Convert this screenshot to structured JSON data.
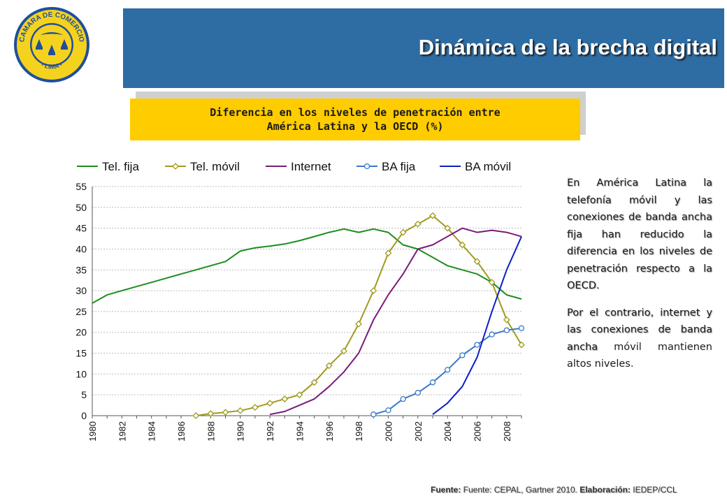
{
  "header": {
    "title": "Dinámica de la brecha digital",
    "logo_text_top": "CAMARA DE COMERCIO",
    "logo_text_bottom": "- LIMA -",
    "colors": {
      "bar": "#2e6da4",
      "logo_ring": "#1f4f9c",
      "logo_fill": "#f5d21e"
    }
  },
  "subtitle": {
    "line1": "Diferencia en los niveles de penetración entre",
    "line2": "América Latina y la OECD (%)"
  },
  "side_text": {
    "p1": "En América Latina la telefonía móvil y las conexiones de banda ancha fija han reducido la diferencia en los niveles de penetración respecto a la OECD.",
    "p2_a": "Por el contrario, internet y las conexiones de banda ancha",
    "p2_b": " móvil mantienen altos niveles."
  },
  "source": {
    "label1": "Fuente:",
    "text1": " Fuente: CEPAL, Gartner 2010. ",
    "label2": "Elaboración:",
    "text2": " IEDEP/CCL"
  },
  "chart_data": {
    "type": "line",
    "ylim": [
      0,
      55
    ],
    "xlim": [
      1980,
      2009
    ],
    "yticks": [
      0,
      5,
      10,
      15,
      20,
      25,
      30,
      35,
      40,
      45,
      50,
      55
    ],
    "xticks": [
      "1980",
      "1982",
      "1984",
      "1986",
      "1988",
      "1990",
      "1992",
      "1994",
      "1996",
      "1998",
      "2000",
      "2002",
      "2004",
      "2006",
      "2008"
    ],
    "grid": true,
    "legend": "top",
    "series": [
      {
        "name": "Tel. fija",
        "color": "#1e8c1e",
        "marker": "none",
        "points": [
          [
            1980,
            27
          ],
          [
            1981,
            29
          ],
          [
            1982,
            30
          ],
          [
            1983,
            31
          ],
          [
            1984,
            32
          ],
          [
            1985,
            33
          ],
          [
            1986,
            34
          ],
          [
            1987,
            35
          ],
          [
            1988,
            36
          ],
          [
            1989,
            37
          ],
          [
            1990,
            39.5
          ],
          [
            1991,
            40.3
          ],
          [
            1992,
            40.7
          ],
          [
            1993,
            41.2
          ],
          [
            1994,
            42
          ],
          [
            1995,
            43
          ],
          [
            1996,
            44
          ],
          [
            1997,
            44.8
          ],
          [
            1998,
            44
          ],
          [
            1999,
            44.8
          ],
          [
            2000,
            44
          ],
          [
            2001,
            41
          ],
          [
            2002,
            40
          ],
          [
            2003,
            38
          ],
          [
            2004,
            36
          ],
          [
            2005,
            35
          ],
          [
            2006,
            34
          ],
          [
            2007,
            32
          ],
          [
            2008,
            29
          ],
          [
            2009,
            28
          ]
        ]
      },
      {
        "name": "Tel. móvil",
        "color": "#a09b1e",
        "marker": "diamond",
        "points": [
          [
            1987,
            0
          ],
          [
            1988,
            0.5
          ],
          [
            1989,
            0.8
          ],
          [
            1990,
            1.2
          ],
          [
            1991,
            2
          ],
          [
            1992,
            3
          ],
          [
            1993,
            4
          ],
          [
            1994,
            5
          ],
          [
            1995,
            8
          ],
          [
            1996,
            12
          ],
          [
            1997,
            15.5
          ],
          [
            1998,
            22
          ],
          [
            1999,
            30
          ],
          [
            2000,
            39
          ],
          [
            2001,
            44
          ],
          [
            2002,
            46
          ],
          [
            2003,
            48
          ],
          [
            2004,
            45
          ],
          [
            2005,
            41
          ],
          [
            2006,
            37
          ],
          [
            2007,
            32
          ],
          [
            2008,
            23
          ],
          [
            2009,
            17
          ]
        ]
      },
      {
        "name": "Internet",
        "color": "#7a1a7a",
        "marker": "none",
        "points": [
          [
            1992,
            0.3
          ],
          [
            1993,
            1
          ],
          [
            1994,
            2.5
          ],
          [
            1995,
            4
          ],
          [
            1996,
            7
          ],
          [
            1997,
            10.5
          ],
          [
            1998,
            15
          ],
          [
            1999,
            23
          ],
          [
            2000,
            29
          ],
          [
            2001,
            34
          ],
          [
            2002,
            40
          ],
          [
            2003,
            41
          ],
          [
            2004,
            43
          ],
          [
            2005,
            45
          ],
          [
            2006,
            44
          ],
          [
            2007,
            44.5
          ],
          [
            2008,
            44
          ],
          [
            2009,
            43
          ]
        ]
      },
      {
        "name": "BA fija",
        "color": "#3a78c9",
        "marker": "circle",
        "points": [
          [
            1999,
            0.3
          ],
          [
            2000,
            1.3
          ],
          [
            2001,
            4
          ],
          [
            2002,
            5.5
          ],
          [
            2003,
            8
          ],
          [
            2004,
            11
          ],
          [
            2005,
            14.5
          ],
          [
            2006,
            17
          ],
          [
            2007,
            19.5
          ],
          [
            2008,
            20.5
          ],
          [
            2009,
            21
          ]
        ]
      },
      {
        "name": "BA móvil",
        "color": "#0a1fc8",
        "marker": "none",
        "points": [
          [
            2003,
            0.3
          ],
          [
            2004,
            3
          ],
          [
            2005,
            7
          ],
          [
            2006,
            14
          ],
          [
            2007,
            25
          ],
          [
            2008,
            35
          ],
          [
            2009,
            43
          ]
        ]
      }
    ]
  }
}
